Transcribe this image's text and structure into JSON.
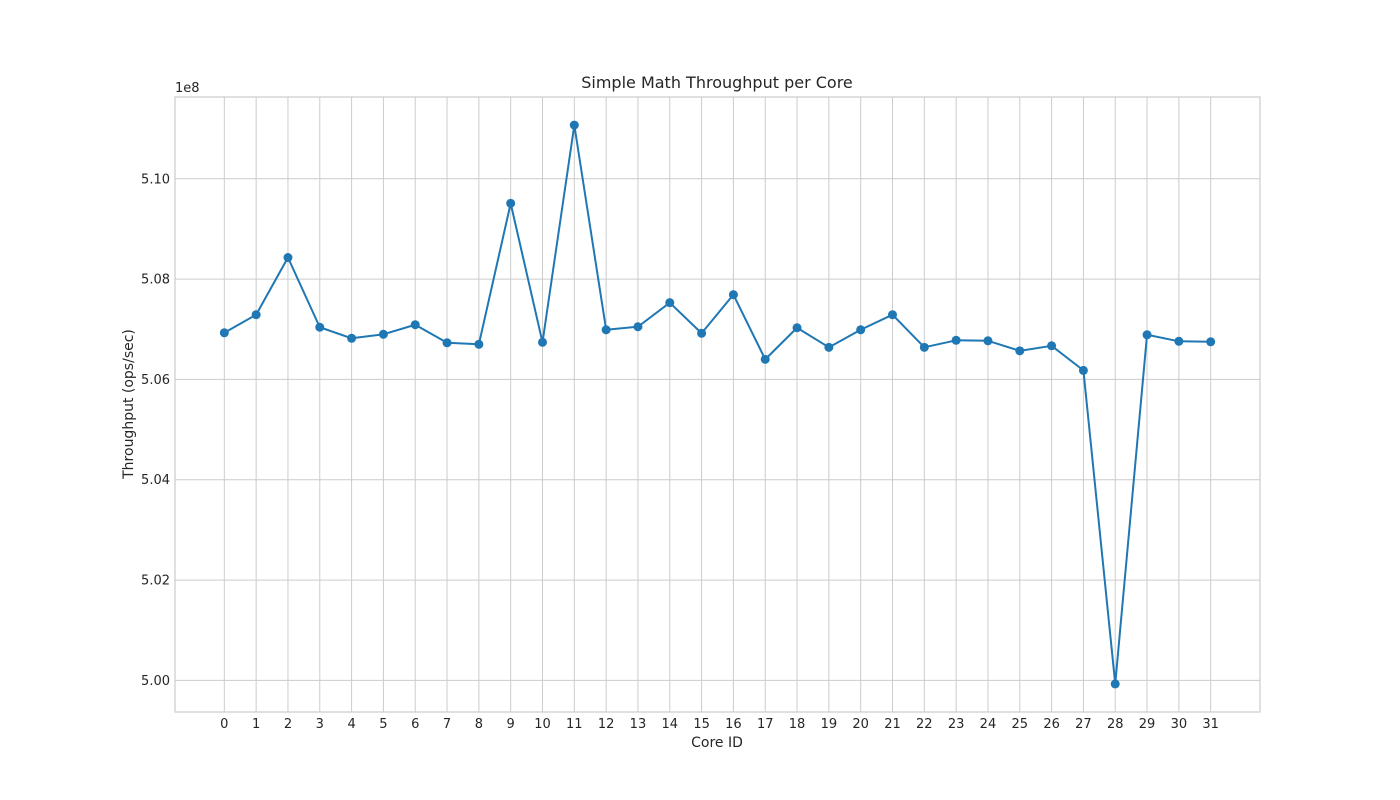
{
  "chart_data": {
    "type": "line",
    "title": "Simple Math Throughput per Core",
    "xlabel": "Core ID",
    "ylabel": "Throughput (ops/sec)",
    "y_offset_label": "1e8",
    "x": [
      0,
      1,
      2,
      3,
      4,
      5,
      6,
      7,
      8,
      9,
      10,
      11,
      12,
      13,
      14,
      15,
      16,
      17,
      18,
      19,
      20,
      21,
      22,
      23,
      24,
      25,
      26,
      27,
      28,
      29,
      30,
      31
    ],
    "x_tick_labels": [
      "0",
      "1",
      "2",
      "3",
      "4",
      "5",
      "6",
      "7",
      "8",
      "9",
      "10",
      "11",
      "12",
      "13",
      "14",
      "15",
      "16",
      "17",
      "18",
      "19",
      "20",
      "21",
      "22",
      "23",
      "24",
      "25",
      "26",
      "27",
      "28",
      "29",
      "30",
      "31"
    ],
    "series": [
      {
        "values": [
          506930000,
          507290000,
          508430000,
          507040000,
          506820000,
          506900000,
          507090000,
          506730000,
          506700000,
          509510000,
          506740000,
          511070000,
          506990000,
          507050000,
          507530000,
          506920000,
          507690000,
          506400000,
          507030000,
          506640000,
          506990000,
          507290000,
          506640000,
          506780000,
          506770000,
          506570000,
          506670000,
          506180000,
          499930000,
          506890000,
          506760000,
          506750000
        ]
      }
    ],
    "y_ticks": [
      500000000,
      502000000,
      504000000,
      506000000,
      508000000,
      510000000
    ],
    "y_tick_labels": [
      "5.00",
      "5.02",
      "5.04",
      "5.06",
      "5.08",
      "5.10"
    ],
    "xlim": [
      -1.55,
      32.55
    ],
    "ylim": [
      499370000,
      511630000
    ],
    "grid": true,
    "line_color": "#1f77b4",
    "marker": "circle"
  }
}
